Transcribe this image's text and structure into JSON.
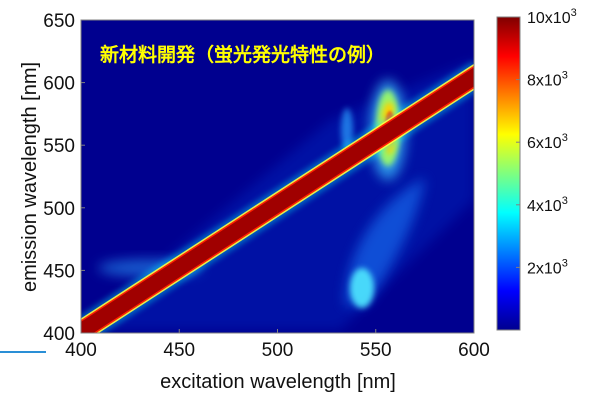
{
  "chart_data": {
    "type": "heatmap",
    "title_overlay": "新材料開発（蛍光発光特性の例）",
    "title_color": "#ffff00",
    "xlabel": "excitation wavelength [nm]",
    "ylabel": "emission wavelength [nm]",
    "xlim": [
      400,
      600
    ],
    "ylim": [
      400,
      650
    ],
    "x_ticks": [
      "400",
      "450",
      "500",
      "550",
      "600"
    ],
    "y_ticks": [
      "400",
      "450",
      "500",
      "550",
      "600",
      "650"
    ],
    "colormap": "jet",
    "colorbar": {
      "range": [
        0,
        10000
      ],
      "tick_values": [
        2000,
        4000,
        6000,
        8000,
        10000
      ],
      "tick_labels": [
        {
          "base": "2x10",
          "exp": "3"
        },
        {
          "base": "4x10",
          "exp": "3"
        },
        {
          "base": "6x10",
          "exp": "3"
        },
        {
          "base": "8x10",
          "exp": "3"
        },
        {
          "base": "10x10",
          "exp": "3"
        }
      ]
    },
    "features": [
      {
        "name": "rayleigh-scatter-diagonal",
        "description": "emission = excitation",
        "intensity": 10000
      },
      {
        "name": "fluorescence-peak",
        "excitation": 557,
        "emission": 570,
        "intensity": 7000
      },
      {
        "name": "fluorescence-lobe-lower",
        "excitation": 548,
        "emission": 430,
        "intensity": 3000
      },
      {
        "name": "side-band-left",
        "excitation": 440,
        "emission": 455,
        "intensity": 1500
      }
    ]
  },
  "colors": {
    "background": "#ffffff",
    "plot_background": "#00008f",
    "accent_line": "#2a8fd6"
  }
}
